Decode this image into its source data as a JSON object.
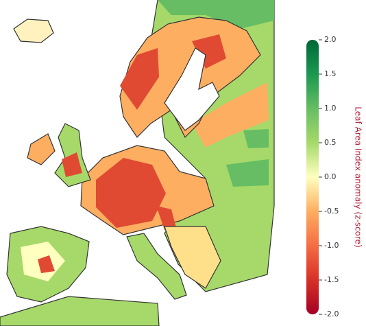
{
  "colorbar": {
    "label": "Leaf Area Index anomaly (z-score)",
    "lim": [
      -2,
      2
    ],
    "ticks": [
      {
        "value": 2,
        "label": "2.0"
      },
      {
        "value": 1.5,
        "label": "1.5"
      },
      {
        "value": 1,
        "label": "1.0"
      },
      {
        "value": 0.5,
        "label": "0.5"
      },
      {
        "value": 0,
        "label": "0.0"
      },
      {
        "value": -0.5,
        "label": "-0.5"
      },
      {
        "value": -1,
        "label": "-1.0"
      },
      {
        "value": -1.5,
        "label": "-1.5"
      },
      {
        "value": -2,
        "label": "-2.0"
      }
    ]
  }
}
